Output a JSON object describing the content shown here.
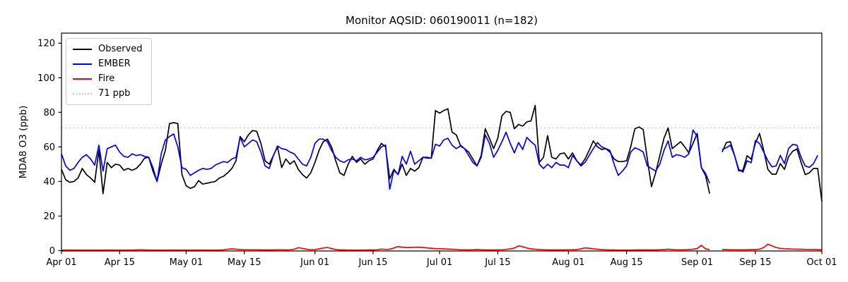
{
  "figure": {
    "title": "Monitor AQSID: 060190011 (n=182)"
  },
  "chart_data": {
    "type": "line",
    "title": "Monitor AQSID: 060190011 (n=182)",
    "xlabel": "",
    "ylabel": "MDA8 O3 (ppb)",
    "grid": false,
    "legend_position": "upper left",
    "ylim": [
      0,
      125
    ],
    "yticks": [
      0,
      20,
      40,
      60,
      80,
      100,
      120
    ],
    "n_days": 184,
    "xticks": [
      {
        "day": 1,
        "label": "Apr 01"
      },
      {
        "day": 15,
        "label": "Apr 15"
      },
      {
        "day": 31,
        "label": "May 01"
      },
      {
        "day": 45,
        "label": "May 15"
      },
      {
        "day": 62,
        "label": "Jun 01"
      },
      {
        "day": 76,
        "label": "Jun 15"
      },
      {
        "day": 92,
        "label": "Jul 01"
      },
      {
        "day": 106,
        "label": "Jul 15"
      },
      {
        "day": 123,
        "label": "Aug 01"
      },
      {
        "day": 137,
        "label": "Aug 15"
      },
      {
        "day": 154,
        "label": "Sep 01"
      },
      {
        "day": 168,
        "label": "Sep 15"
      },
      {
        "day": 184,
        "label": "Oct 01"
      }
    ],
    "threshold": {
      "label": "71 ppb",
      "value": 71,
      "color": "#c8c8c8"
    },
    "data_gap_days": [
      158,
      159
    ],
    "series": [
      {
        "name": "Observed",
        "color": "#000000",
        "values": [
          47,
          41,
          39.5,
          40,
          42,
          47.5,
          44,
          42,
          39.5,
          58,
          33,
          51,
          48,
          50,
          49.5,
          46.5,
          47.5,
          46.5,
          47.5,
          50,
          53.5,
          54,
          46,
          40,
          50,
          58,
          73.5,
          74,
          73.5,
          44,
          37.5,
          36,
          37,
          40.5,
          38.5,
          39,
          39.5,
          40,
          42,
          43,
          45,
          47.5,
          52,
          66,
          63,
          67,
          69.5,
          69,
          62,
          52,
          50,
          55,
          60,
          48,
          53,
          50,
          52,
          47,
          44,
          42,
          45,
          51,
          58,
          63,
          64.5,
          60,
          52,
          45,
          43.5,
          50,
          54.5,
          51,
          53,
          50,
          52,
          53,
          58,
          62,
          60,
          41.5,
          47,
          44,
          50,
          43.5,
          47.5,
          46,
          48,
          54,
          53.5,
          53.5,
          81,
          79.5,
          81,
          82,
          68.5,
          67,
          61,
          59,
          57,
          53,
          49,
          55,
          70.5,
          65,
          59,
          65,
          78,
          80.5,
          80,
          70.5,
          73,
          72,
          74.5,
          75,
          84,
          51,
          54,
          66.5,
          54,
          53,
          56,
          56.5,
          53,
          56.5,
          52,
          49.5,
          53,
          58,
          63.5,
          60,
          58.5,
          59,
          57,
          53,
          51.5,
          51.5,
          52,
          60,
          70.5,
          71.5,
          70,
          53,
          37,
          45,
          55,
          65,
          71,
          59,
          61,
          63,
          60,
          56.5,
          62,
          67.8,
          48,
          43.5,
          33,
          null,
          null,
          57,
          62.5,
          63,
          55,
          46.1,
          46.5,
          54.9,
          52.9,
          62,
          67.8,
          58,
          47,
          44.2,
          44.2,
          50.3,
          47,
          54.4,
          57.5,
          58.8,
          51,
          44,
          45,
          47.6,
          47.5,
          28.5
        ]
      },
      {
        "name": "EMBER",
        "color": "#0000ff",
        "values": [
          56,
          49,
          46.5,
          47.5,
          51,
          54,
          55.5,
          53,
          49.5,
          61,
          46,
          59,
          60,
          61,
          57,
          54.5,
          54,
          56,
          55,
          55.5,
          54.5,
          54,
          48,
          40,
          56,
          64,
          66,
          67.5,
          60,
          48,
          47,
          43.5,
          45,
          46.5,
          47.5,
          47,
          47.5,
          49.5,
          50.5,
          51.5,
          51,
          53,
          54,
          65.5,
          60,
          62,
          64,
          63,
          57,
          49,
          47.5,
          55,
          60.5,
          59,
          58.5,
          57,
          56,
          53,
          50,
          49,
          54,
          62,
          64.5,
          64.5,
          63,
          58,
          54,
          52,
          51,
          52.5,
          53,
          52,
          54,
          52.5,
          53,
          54,
          57,
          60,
          61,
          35.5,
          46.5,
          44,
          54.5,
          50,
          57.5,
          50,
          52,
          54,
          54,
          53.5,
          61.5,
          60.5,
          64,
          65,
          61,
          59,
          60.5,
          59,
          55,
          51,
          49,
          54,
          67,
          62,
          54,
          58,
          63,
          68.5,
          62,
          56.5,
          62.5,
          58.5,
          65.5,
          63,
          61,
          50,
          47.5,
          50,
          48,
          51,
          49.5,
          49.5,
          48,
          55,
          52,
          49,
          51,
          55,
          59,
          62.5,
          60,
          59,
          58,
          50,
          43.5,
          46,
          49,
          57,
          59.5,
          58.5,
          57,
          49,
          47.5,
          46,
          50,
          58,
          63.5,
          54,
          55.5,
          55,
          54,
          56,
          69.8,
          66,
          48,
          44.7,
          39,
          null,
          null,
          58.5,
          59.5,
          61,
          55,
          47,
          45.4,
          52,
          50.8,
          63.7,
          62,
          57,
          52,
          48.5,
          49,
          55.1,
          50.3,
          59.1,
          61.4,
          61,
          54,
          48.9,
          48.2,
          50.3,
          55.1,
          null
        ]
      },
      {
        "name": "Fire",
        "color": "#ff0000",
        "values": [
          0.3,
          0.3,
          0.3,
          0.3,
          0.3,
          0.3,
          0.3,
          0.3,
          0.3,
          0.3,
          0.3,
          0.3,
          0.3,
          0.3,
          0.3,
          0.3,
          0.3,
          0.3,
          0.4,
          0.5,
          0.4,
          0.3,
          0.3,
          0.3,
          0.3,
          0.3,
          0.3,
          0.3,
          0.3,
          0.3,
          0.3,
          0.3,
          0.3,
          0.3,
          0.3,
          0.3,
          0.3,
          0.3,
          0.3,
          0.5,
          0.8,
          1.0,
          0.8,
          0.6,
          0.5,
          0.5,
          0.5,
          0.5,
          0.4,
          0.4,
          0.4,
          0.4,
          0.5,
          0.5,
          0.4,
          0.5,
          0.8,
          1.7,
          1.3,
          0.8,
          0.5,
          0.6,
          1.0,
          1.5,
          1.8,
          1.2,
          0.6,
          0.4,
          0.4,
          0.3,
          0.3,
          0.3,
          0.3,
          0.3,
          0.4,
          0.4,
          0.5,
          0.9,
          0.7,
          0.8,
          1.5,
          2.4,
          2.0,
          1.8,
          1.8,
          1.9,
          2.0,
          1.8,
          1.6,
          1.4,
          1.2,
          1.1,
          1.0,
          0.9,
          0.8,
          0.7,
          0.5,
          0.5,
          0.4,
          0.5,
          0.6,
          0.5,
          0.4,
          0.4,
          0.4,
          0.4,
          0.5,
          0.7,
          1.0,
          1.5,
          2.7,
          2.3,
          1.5,
          1.0,
          0.8,
          0.6,
          0.5,
          0.4,
          0.4,
          0.4,
          0.4,
          0.4,
          0.5,
          0.5,
          0.6,
          1.0,
          1.6,
          1.4,
          1.0,
          0.8,
          0.6,
          0.5,
          0.4,
          0.4,
          0.3,
          0.3,
          0.3,
          0.3,
          0.4,
          0.4,
          0.4,
          0.4,
          0.4,
          0.4,
          0.5,
          0.6,
          0.8,
          0.6,
          0.5,
          0.5,
          0.5,
          0.6,
          0.8,
          1.2,
          3.1,
          1.0,
          0.6,
          null,
          null,
          0.6,
          0.6,
          0.5,
          0.5,
          0.5,
          0.5,
          0.5,
          0.6,
          0.6,
          0.8,
          1.8,
          3.7,
          2.8,
          1.8,
          1.3,
          1.1,
          1.0,
          0.9,
          0.8,
          0.8,
          0.7,
          0.7,
          0.7,
          0.6,
          0.5
        ]
      }
    ]
  }
}
